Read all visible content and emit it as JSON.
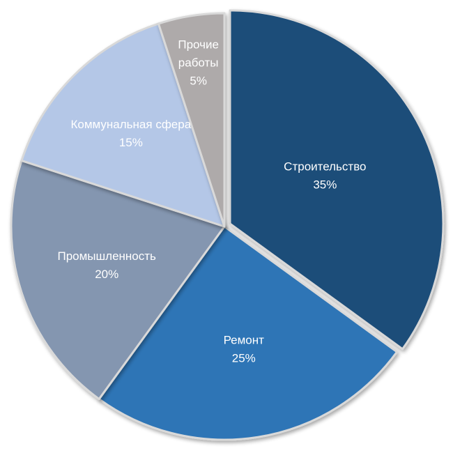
{
  "chart_data": {
    "type": "pie",
    "title": "",
    "start": "top",
    "direction": "clockwise",
    "exploded": [
      "Строительство"
    ],
    "legend": "none",
    "slices": [
      {
        "label": "Строительство",
        "value_label": "35%",
        "value": 35,
        "color": "#1f4e79"
      },
      {
        "label": "Ремонт",
        "value_label": "25%",
        "value": 25,
        "color": "#2e75b6"
      },
      {
        "label": "Промышленность",
        "value_label": "20%",
        "value": 20,
        "color": "#8496b0"
      },
      {
        "label": "Коммунальная сфера",
        "value_label": "15%",
        "value": 15,
        "color": "#b4c7e7"
      },
      {
        "label": "Прочие работы",
        "value_label": "5%",
        "value": 5,
        "color": "#aeaaaa"
      }
    ],
    "label_color_dark_slices": "#ffffff",
    "label_color_light_slices": "#404040"
  }
}
